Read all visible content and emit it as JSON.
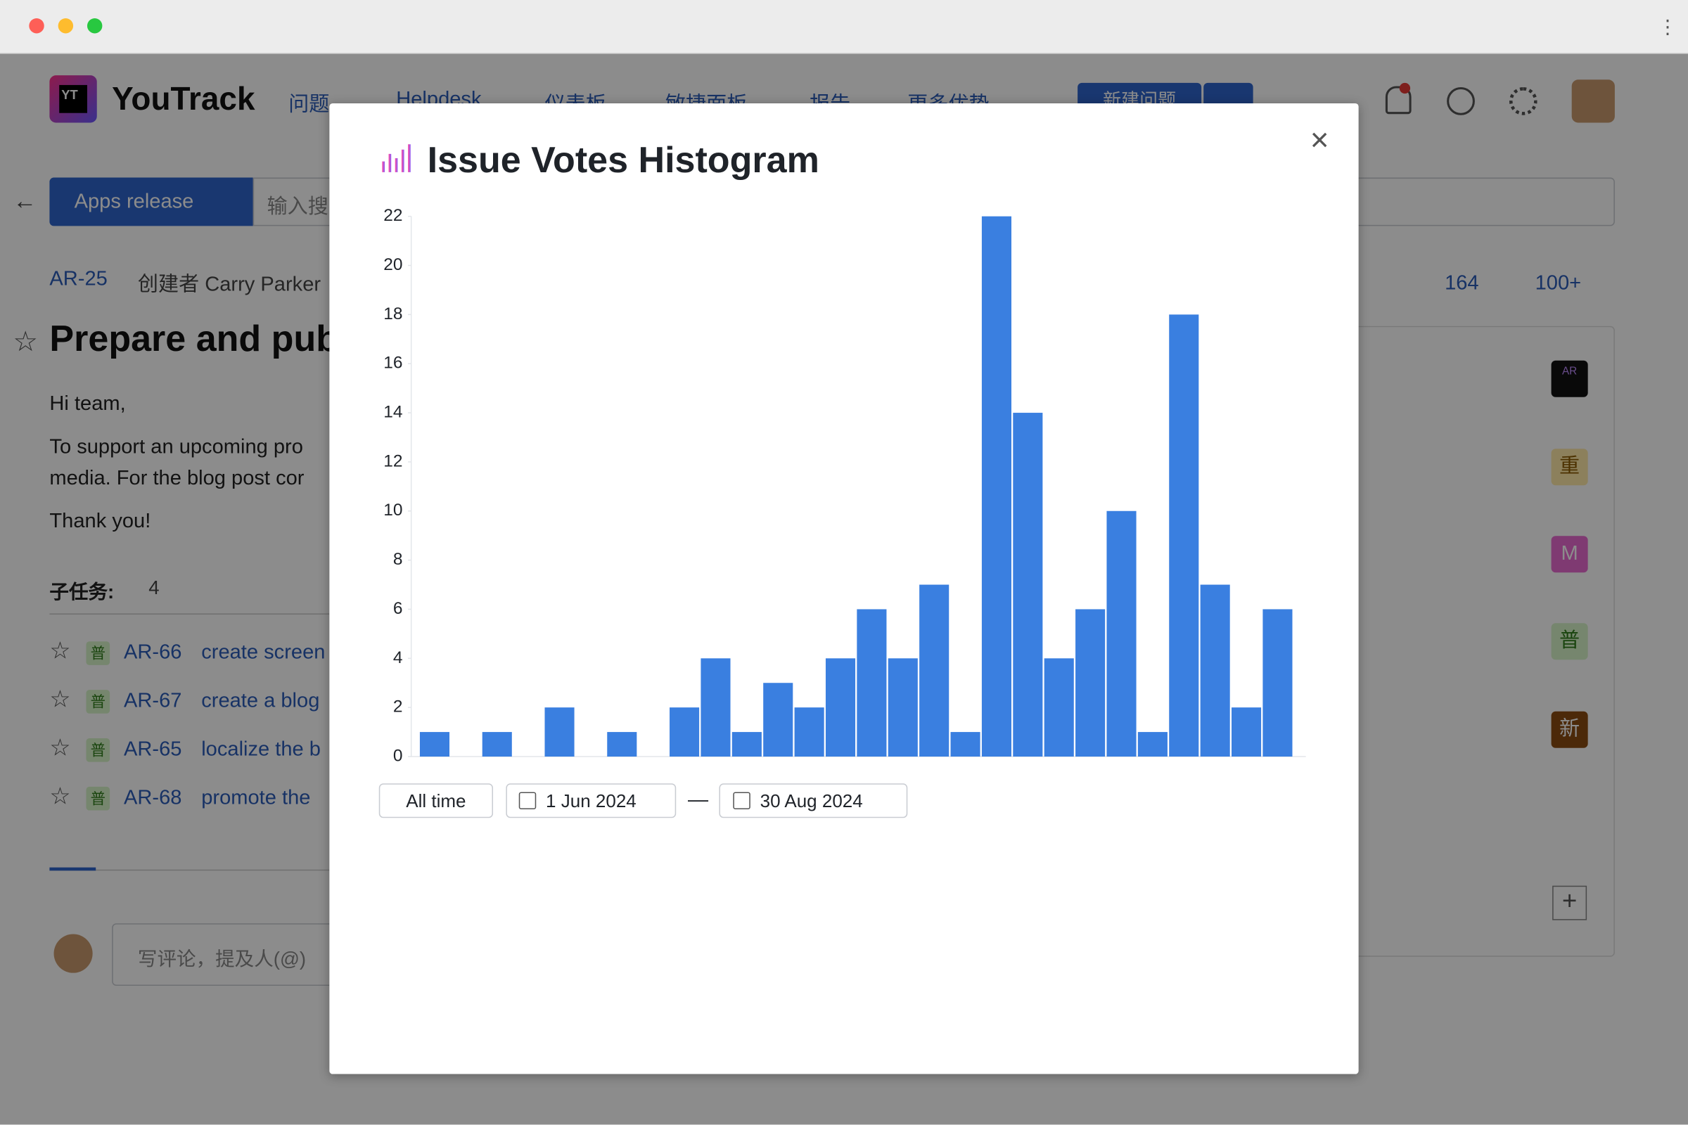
{
  "nav": {
    "logo": "YouTrack",
    "items": [
      "问题",
      "Helpdesk",
      "仪表板",
      "敏捷面板",
      "报告",
      "更多优势"
    ],
    "new_issue": "新建问题"
  },
  "toolbar": {
    "project": "Apps release",
    "search_placeholder": "输入搜"
  },
  "issue": {
    "id": "AR-25",
    "author": "创建者 Carry Parker",
    "votes": "164",
    "stars": "100+",
    "title": "Prepare and publ",
    "body": [
      "Hi team,",
      "To support an upcoming pro",
      "media. For the blog post cor",
      "Thank you!"
    ]
  },
  "subtasks": {
    "label": "子任务:",
    "count": "4",
    "items": [
      {
        "badge": "普",
        "id": "AR-66",
        "summary": "create screen"
      },
      {
        "badge": "普",
        "id": "AR-67",
        "summary": "create a blog"
      },
      {
        "badge": "普",
        "id": "AR-65",
        "summary": "localize the b"
      },
      {
        "badge": "普",
        "id": "AR-68",
        "summary": "promote the"
      }
    ]
  },
  "comment_placeholder": "写评论，提及人(@)",
  "sidebar": {
    "badges": [
      "AR",
      "重",
      "M",
      "普",
      "新"
    ]
  },
  "modal": {
    "title": "Issue Votes Histogram",
    "all_time": "All time",
    "from": "1 Jun 2024",
    "separator": "—",
    "to": "30 Aug 2024"
  },
  "chart_data": {
    "type": "histogram",
    "values": [
      1,
      0,
      1,
      0,
      2,
      0,
      1,
      0,
      2,
      4,
      1,
      3,
      2,
      4,
      6,
      4,
      7,
      1,
      22,
      14,
      4,
      6,
      10,
      1,
      18,
      7,
      2,
      6
    ],
    "color": "#3a7fe0",
    "ylim": [
      0,
      22
    ],
    "yticks": [
      0,
      2,
      4,
      6,
      8,
      10,
      12,
      14,
      16,
      18,
      20,
      22
    ]
  }
}
